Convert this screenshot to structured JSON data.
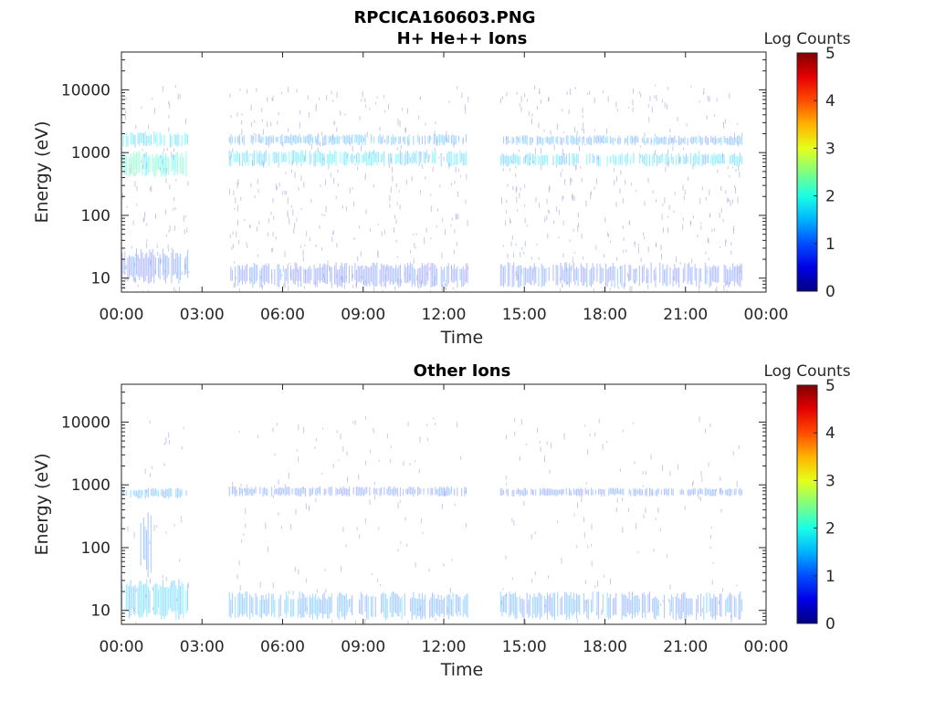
{
  "figure_title": "RPCICA160603.PNG",
  "chart_data": [
    {
      "type": "heatmap",
      "title": "H+ He++ Ions",
      "xlabel": "Time",
      "ylabel": "Energy (eV)",
      "x_ticks": [
        "00:00",
        "03:00",
        "06:00",
        "09:00",
        "12:00",
        "15:00",
        "18:00",
        "21:00",
        "00:00"
      ],
      "xlim_hours": [
        0,
        24
      ],
      "y_scale": "log",
      "ylim": [
        6,
        40000
      ],
      "y_ticks": [
        10,
        100,
        1000,
        10000
      ],
      "y_tick_labels": [
        "10",
        "100",
        "1000",
        "10000"
      ],
      "colorbar": {
        "label": "Log Counts",
        "range": [
          0,
          5
        ],
        "ticks": [
          "0",
          "1",
          "2",
          "3",
          "4",
          "5"
        ],
        "colormap": "jet"
      },
      "data_gaps_hours": [
        [
          2.5,
          4.0
        ],
        [
          12.9,
          14.1
        ]
      ],
      "data_end_hours": 23.1,
      "bands": [
        {
          "t_start": 0.0,
          "t_end": 2.5,
          "e_low": 400,
          "e_high": 1100,
          "log_counts": 1.7
        },
        {
          "t_start": 0.0,
          "t_end": 2.5,
          "e_low": 1200,
          "e_high": 2200,
          "log_counts": 1.1
        },
        {
          "t_start": 4.0,
          "t_end": 12.9,
          "e_low": 600,
          "e_high": 1100,
          "log_counts": 1.2
        },
        {
          "t_start": 4.0,
          "t_end": 12.9,
          "e_low": 1300,
          "e_high": 2000,
          "log_counts": 0.8
        },
        {
          "t_start": 14.1,
          "t_end": 23.1,
          "e_low": 600,
          "e_high": 1000,
          "log_counts": 1.1
        },
        {
          "t_start": 14.1,
          "t_end": 23.1,
          "e_low": 1300,
          "e_high": 1900,
          "log_counts": 0.7
        },
        {
          "t_start": 0.0,
          "t_end": 2.5,
          "e_low": 8,
          "e_high": 30,
          "log_counts": 0.4
        },
        {
          "t_start": 4.0,
          "t_end": 12.9,
          "e_low": 7,
          "e_high": 18,
          "log_counts": 0.3
        },
        {
          "t_start": 14.1,
          "t_end": 23.1,
          "e_low": 7,
          "e_high": 18,
          "log_counts": 0.3
        }
      ]
    },
    {
      "type": "heatmap",
      "title": "Other Ions",
      "xlabel": "Time",
      "ylabel": "Energy (eV)",
      "x_ticks": [
        "00:00",
        "03:00",
        "06:00",
        "09:00",
        "12:00",
        "15:00",
        "18:00",
        "21:00",
        "00:00"
      ],
      "xlim_hours": [
        0,
        24
      ],
      "y_scale": "log",
      "ylim": [
        6,
        40000
      ],
      "y_ticks": [
        10,
        100,
        1000,
        10000
      ],
      "y_tick_labels": [
        "10",
        "100",
        "1000",
        "10000"
      ],
      "colorbar": {
        "label": "Log Counts",
        "range": [
          0,
          5
        ],
        "ticks": [
          "0",
          "1",
          "2",
          "3",
          "4",
          "5"
        ],
        "colormap": "jet"
      },
      "data_gaps_hours": [
        [
          2.5,
          4.0
        ],
        [
          12.9,
          14.1
        ]
      ],
      "data_end_hours": 23.1,
      "bands": [
        {
          "t_start": 0.0,
          "t_end": 2.5,
          "e_low": 600,
          "e_high": 900,
          "log_counts": 0.8
        },
        {
          "t_start": 4.0,
          "t_end": 12.9,
          "e_low": 650,
          "e_high": 950,
          "log_counts": 0.4
        },
        {
          "t_start": 14.1,
          "t_end": 23.1,
          "e_low": 650,
          "e_high": 900,
          "log_counts": 0.4
        },
        {
          "t_start": 0.0,
          "t_end": 2.5,
          "e_low": 7,
          "e_high": 32,
          "log_counts": 1.0
        },
        {
          "t_start": 4.0,
          "t_end": 12.9,
          "e_low": 7,
          "e_high": 20,
          "log_counts": 0.7
        },
        {
          "t_start": 14.1,
          "t_end": 23.1,
          "e_low": 7,
          "e_high": 20,
          "log_counts": 0.6
        },
        {
          "t_start": 0.7,
          "t_end": 1.1,
          "e_low": 30,
          "e_high": 400,
          "log_counts": 0.5
        }
      ]
    }
  ]
}
